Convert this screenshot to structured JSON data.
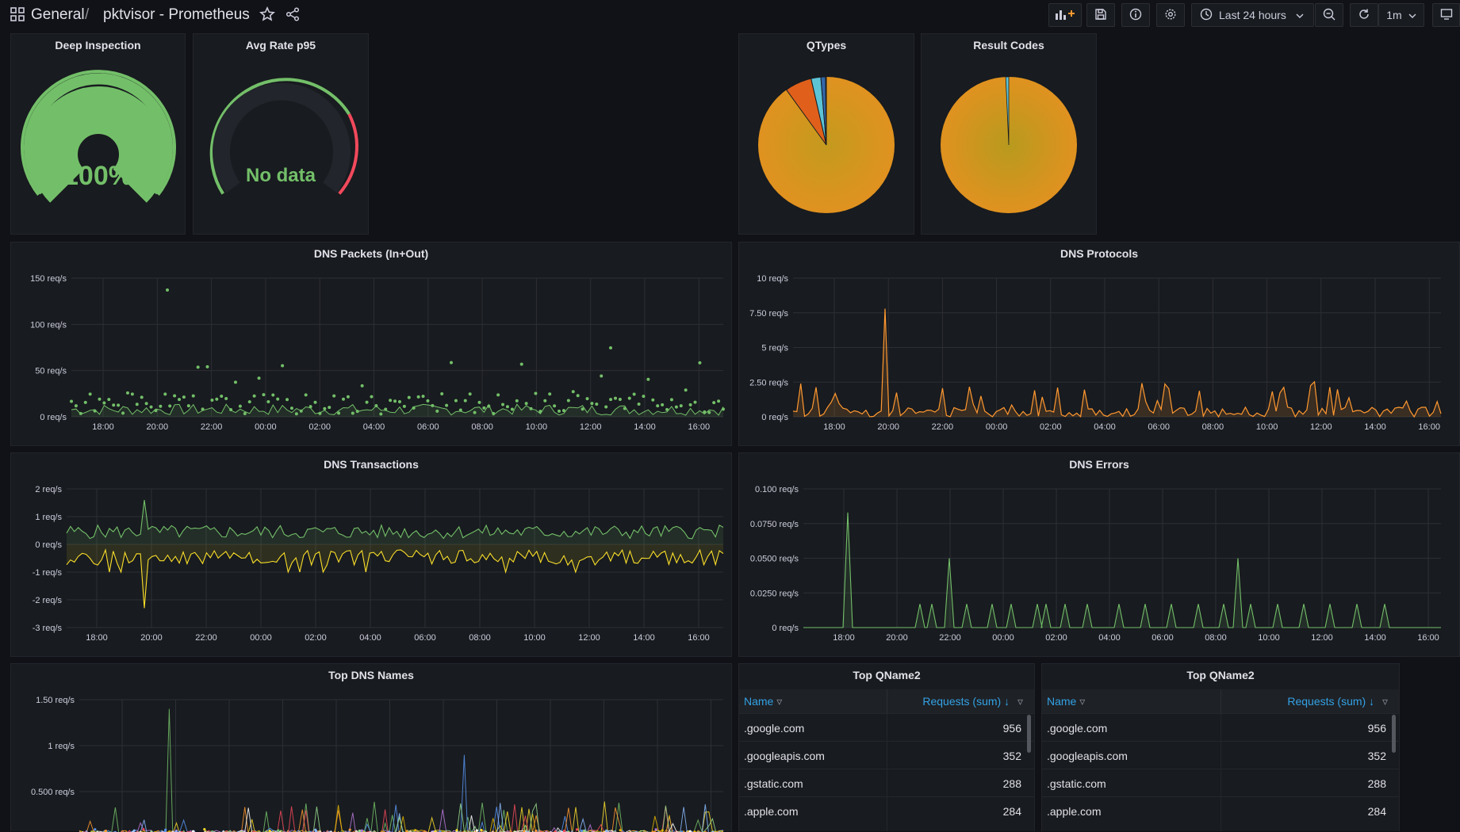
{
  "header": {
    "home_label": "General",
    "separator": "/",
    "dashboard_title": "pktvisor - Prometheus",
    "time_range": "Last 24 hours",
    "refresh_interval": "1m"
  },
  "panels": {
    "deep_inspection": {
      "title": "Deep Inspection",
      "value": "100%",
      "level": 1.0
    },
    "avg_rate": {
      "title": "Avg Rate p95",
      "value": "No data"
    },
    "qtypes": {
      "title": "QTypes"
    },
    "result_codes": {
      "title": "Result Codes"
    },
    "dns_packets": {
      "title": "DNS Packets (In+Out)",
      "yticks": [
        "150 req/s",
        "100 req/s",
        "50 req/s",
        "0 req/s"
      ]
    },
    "dns_protocols": {
      "title": "DNS Protocols",
      "yticks": [
        "10 req/s",
        "7.50 req/s",
        "5 req/s",
        "2.50 req/s",
        "0 req/s"
      ]
    },
    "dns_transactions": {
      "title": "DNS Transactions",
      "yticks": [
        "2 req/s",
        "1 req/s",
        "0 req/s",
        "-1 req/s",
        "-2 req/s",
        "-3 req/s"
      ]
    },
    "dns_errors": {
      "title": "DNS Errors",
      "yticks": [
        "0.100 req/s",
        "0.0750 req/s",
        "0.0500 req/s",
        "0.0250 req/s",
        "0 req/s"
      ]
    },
    "top_dns_names": {
      "title": "Top DNS Names",
      "yticks": [
        "1.50 req/s",
        "1 req/s",
        "0.500 req/s"
      ]
    }
  },
  "xticks": [
    "18:00",
    "20:00",
    "22:00",
    "00:00",
    "02:00",
    "04:00",
    "06:00",
    "08:00",
    "10:00",
    "12:00",
    "14:00",
    "16:00"
  ],
  "tables": [
    {
      "title": "Top QName2",
      "col_name": "Name",
      "col_value": "Requests (sum)",
      "rows": [
        {
          "name": ".google.com",
          "value": "956"
        },
        {
          "name": ".googleapis.com",
          "value": "352"
        },
        {
          "name": ".gstatic.com",
          "value": "288"
        },
        {
          "name": ".apple.com",
          "value": "284"
        }
      ]
    },
    {
      "title": "Top QName2",
      "col_name": "Name",
      "col_value": "Requests (sum)",
      "rows": [
        {
          "name": ".google.com",
          "value": "956"
        },
        {
          "name": ".googleapis.com",
          "value": "352"
        },
        {
          "name": ".gstatic.com",
          "value": "288"
        },
        {
          "name": ".apple.com",
          "value": "284"
        }
      ]
    }
  ],
  "colors": {
    "green": "#73bf69",
    "orange": "#d89a2b",
    "orange_line": "#ff9830",
    "yellow": "#fade2a",
    "red": "#f2495c",
    "blue": "#33a2e5"
  }
}
